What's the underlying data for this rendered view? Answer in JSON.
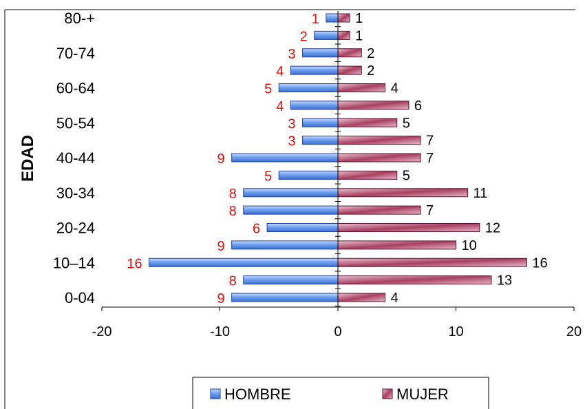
{
  "chart_data": {
    "type": "bar",
    "orientation": "horizontal",
    "ylabel": "EDAD",
    "categories": [
      "0-04",
      "",
      "10–14",
      "",
      "20-24",
      "",
      "30-34",
      "",
      "40-44",
      "",
      "50-54",
      "",
      "60-64",
      "",
      "70-74",
      "",
      "80-+"
    ],
    "series": [
      {
        "name": "HOMBRE",
        "values": [
          -9,
          -8,
          -16,
          -9,
          -6,
          -8,
          -8,
          -5,
          -9,
          -3,
          -3,
          -4,
          -5,
          -4,
          -3,
          -2,
          -1
        ],
        "labels": [
          "9",
          "8",
          "16",
          "9",
          "6",
          "8",
          "8",
          "5",
          "9",
          "3",
          "3",
          "4",
          "5",
          "4",
          "3",
          "2",
          "1"
        ]
      },
      {
        "name": "MUJER",
        "values": [
          4,
          13,
          16,
          10,
          12,
          7,
          11,
          5,
          7,
          7,
          5,
          6,
          4,
          2,
          2,
          1,
          1
        ],
        "labels": [
          "4",
          "13",
          "16",
          "10",
          "12",
          "7",
          "11",
          "5",
          "7",
          "7",
          "5",
          "6",
          "4",
          "2",
          "2",
          "1",
          "1"
        ]
      }
    ],
    "xlim": [
      -20,
      20
    ],
    "xticks": [
      -20,
      -10,
      0,
      10,
      20
    ],
    "xtick_labels": [
      "-20",
      "-10",
      "0",
      "10",
      "20"
    ],
    "legend": "bottom",
    "colors": {
      "hombre_fill": "#6fa0f0",
      "hombre_stroke": "#1f3fa0",
      "mujer_fill": "#a84060",
      "mujer_stroke": "#5a1030",
      "hombre_label": "#e01010",
      "mujer_label": "#000000"
    }
  }
}
